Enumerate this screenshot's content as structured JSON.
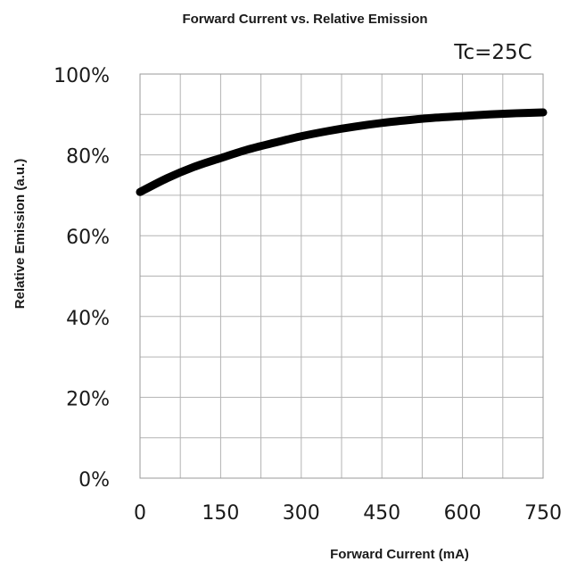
{
  "chart_data": {
    "type": "line",
    "title": "Forward Current vs. Relative Emission",
    "annotation": "Tc=25C",
    "xlabel": "Forward Current (mA)",
    "ylabel": "Relative Emission (a.u.)",
    "xlim": [
      0,
      750
    ],
    "ylim": [
      0,
      100
    ],
    "x_ticks": [
      0,
      150,
      300,
      450,
      600,
      750
    ],
    "x_tick_labels": [
      "0",
      "150",
      "300",
      "450",
      "600",
      "750"
    ],
    "y_ticks": [
      0,
      20,
      40,
      60,
      80,
      100
    ],
    "y_tick_labels": [
      "0%",
      "20%",
      "40%",
      "60%",
      "80%",
      "100%"
    ],
    "grid": true,
    "colors": {
      "line": "#000000",
      "grid": "#b3b3b3"
    },
    "series": [
      {
        "x": [
          0,
          50,
          100,
          150,
          200,
          250,
          300,
          350,
          400,
          450,
          500,
          550,
          600,
          650,
          700,
          750
        ],
        "y": [
          70.8,
          74.2,
          77.0,
          79.2,
          81.3,
          83.0,
          84.6,
          85.9,
          87.0,
          87.9,
          88.6,
          89.2,
          89.6,
          90.0,
          90.3,
          90.5
        ]
      }
    ]
  }
}
